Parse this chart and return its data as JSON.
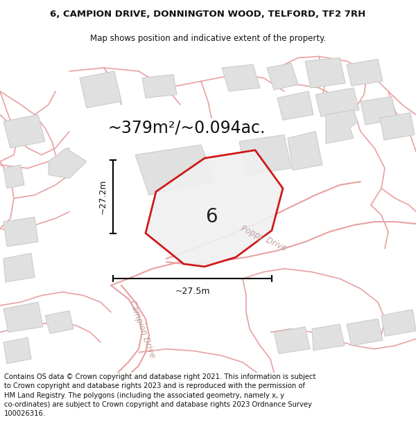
{
  "title_line1": "6, CAMPION DRIVE, DONNINGTON WOOD, TELFORD, TF2 7RH",
  "title_line2": "Map shows position and indicative extent of the property.",
  "area_label": "~379m²/~0.094ac.",
  "property_number": "6",
  "width_label": "~27.5m",
  "height_label": "~27.2m",
  "footer_text": "Contains OS data © Crown copyright and database right 2021. This information is subject to Crown copyright and database rights 2023 and is reproduced with the permission of HM Land Registry. The polygons (including the associated geometry, namely x, y co-ordinates) are subject to Crown copyright and database rights 2023 Ordnance Survey 100026316.",
  "bg_color": "#ffffff",
  "map_bg": "#ffffff",
  "property_fill": "#ffffff",
  "property_edge": "#cc0000",
  "road_color": "#e8a0a0",
  "building_fill": "#e0e0e0",
  "building_edge": "#cccccc",
  "title_fontsize": 9.5,
  "subtitle_fontsize": 8.5,
  "area_fontsize": 17,
  "label_fontsize": 9,
  "footer_fontsize": 7.2
}
